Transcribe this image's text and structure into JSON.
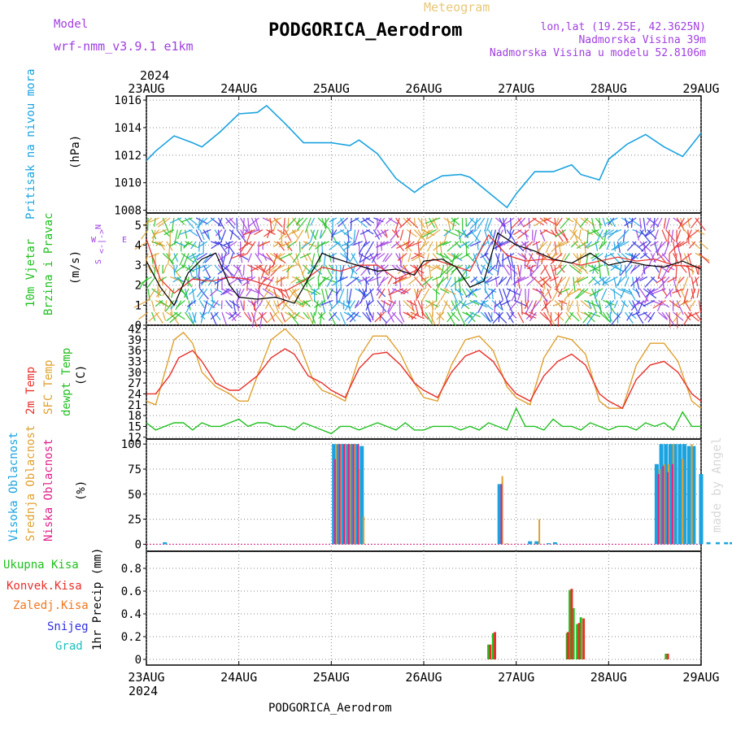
{
  "header": {
    "model_label": "Model",
    "model_name": "wrf-nmm_v3.9.1 e1km",
    "product": "Meteogram",
    "station": "PODGORICA_Aerodrom",
    "lonlat": "lon,lat (19.25E, 42.3625N)",
    "elevation": "Nadmorska Visina 39m",
    "model_elevation": "Nadmorska Visina u modelu 52.8106m",
    "footer_station": "PODGORICA_Aerodrom",
    "credit": "made by Angel",
    "year_top": "2024",
    "year_bottom": "2024"
  },
  "colors": {
    "pressure": "#1ba3e0",
    "wind_speed": "#000000",
    "wind_gust": "#e8302a",
    "t2m": "#e8302a",
    "sfc": "#e0a030",
    "dewpt": "#20c020",
    "cloud_high": "#1ba3e0",
    "cloud_mid": "#e0a030",
    "cloud_low": "#e0208a",
    "precip_total": "#20c020",
    "precip_conv": "#e8302a",
    "precip_frozen": "#f07820",
    "precip_snow": "#3030e0",
    "precip_hail": "#20c0c0",
    "wind_label": "#a040e0"
  },
  "chart_data": [
    {
      "type": "line",
      "panel": "pressure",
      "title": "",
      "ylabel_name": "Pritisak na nivou mora",
      "ylabel_unit": "(hPa)",
      "x_days": [
        "23AUG",
        "24AUG",
        "25AUG",
        "26AUG",
        "27AUG",
        "28AUG",
        "29AUG"
      ],
      "ylim": [
        1007.8,
        1016.3
      ],
      "yticks": [
        1008,
        1010,
        1012,
        1014,
        1016
      ],
      "series": [
        {
          "key": "slp",
          "x": [
            0,
            0.1,
            0.3,
            0.5,
            0.6,
            0.8,
            1.0,
            1.2,
            1.3,
            1.5,
            1.7,
            1.8,
            2.0,
            2.2,
            2.3,
            2.5,
            2.7,
            2.9,
            3.0,
            3.2,
            3.4,
            3.5,
            3.7,
            3.9,
            4.0,
            4.2,
            4.4,
            4.6,
            4.7,
            4.9,
            5.0,
            5.2,
            5.4,
            5.6,
            5.8,
            6.0
          ],
          "values": [
            1011.6,
            1012.3,
            1013.4,
            1012.9,
            1012.6,
            1013.7,
            1015.0,
            1015.1,
            1015.6,
            1014.3,
            1012.9,
            1012.9,
            1012.9,
            1012.7,
            1013.1,
            1012.1,
            1010.3,
            1009.3,
            1009.8,
            1010.5,
            1010.6,
            1010.4,
            1009.3,
            1008.2,
            1009.2,
            1010.8,
            1010.8,
            1011.3,
            1010.6,
            1010.2,
            1011.7,
            1012.8,
            1013.5,
            1012.6,
            1011.9,
            1013.6
          ]
        }
      ]
    },
    {
      "type": "line",
      "panel": "wind",
      "title": "",
      "ylabel_name": "10m Vjetar",
      "ylabel_name2": "Brzina i Pravac",
      "ylabel_unit": "(m/s)",
      "legend_text": [
        "W",
        "<-|->",
        "E",
        "N",
        "S"
      ],
      "ylim": [
        0,
        5.6
      ],
      "yticks": [
        0,
        1,
        2,
        3,
        4,
        5
      ],
      "series": [
        {
          "key": "speed",
          "x": [
            0,
            0.15,
            0.3,
            0.45,
            0.6,
            0.75,
            0.9,
            1.0,
            1.2,
            1.4,
            1.6,
            1.75,
            1.9,
            2.0,
            2.2,
            2.5,
            2.7,
            2.9,
            3.0,
            3.2,
            3.35,
            3.5,
            3.65,
            3.8,
            4.0,
            4.2,
            4.4,
            4.6,
            4.8,
            5.0,
            5.2,
            5.4,
            5.6,
            5.8,
            6.0
          ],
          "values": [
            3.2,
            1.9,
            1.0,
            2.6,
            3.3,
            3.6,
            2.0,
            1.4,
            1.3,
            1.4,
            1.1,
            2.3,
            3.6,
            3.4,
            3.1,
            2.7,
            2.8,
            2.5,
            3.2,
            3.3,
            2.9,
            1.9,
            2.2,
            4.6,
            4.0,
            3.7,
            3.3,
            3.1,
            3.6,
            3.0,
            3.2,
            3.0,
            2.9,
            3.2,
            2.8
          ]
        },
        {
          "key": "gust",
          "x": [
            0,
            0.15,
            0.3,
            0.5,
            0.7,
            0.9,
            1.1,
            1.3,
            1.5,
            1.7,
            1.9,
            2.1,
            2.3,
            2.5,
            2.7,
            2.9,
            3.1,
            3.3,
            3.5,
            3.7,
            3.9,
            4.1,
            4.3,
            4.5,
            4.7,
            4.9,
            5.1,
            5.3,
            5.5,
            5.7,
            6.0
          ],
          "values": [
            4.3,
            2.3,
            1.6,
            2.3,
            2.2,
            2.4,
            2.3,
            2.0,
            1.7,
            2.2,
            2.9,
            2.7,
            3.0,
            3.0,
            2.3,
            2.7,
            3.3,
            3.0,
            2.7,
            4.5,
            3.5,
            3.2,
            3.3,
            3.2,
            3.0,
            3.2,
            3.4,
            3.2,
            3.3,
            3.0,
            2.9
          ]
        }
      ]
    },
    {
      "type": "line",
      "panel": "temperature",
      "title": "",
      "ylabel_names": [
        "2m Temp",
        "SFC Temp",
        "dewpt Temp"
      ],
      "ylabel_unit": "(C)",
      "ylim": [
        11.5,
        43
      ],
      "yticks": [
        12,
        15,
        18,
        21,
        24,
        27,
        30,
        33,
        36,
        39,
        42
      ],
      "series": [
        {
          "key": "t2m",
          "x": [
            0,
            0.1,
            0.25,
            0.35,
            0.5,
            0.6,
            0.75,
            0.9,
            1.0,
            1.2,
            1.35,
            1.5,
            1.6,
            1.75,
            1.9,
            2.0,
            2.15,
            2.3,
            2.45,
            2.6,
            2.75,
            2.9,
            3.0,
            3.15,
            3.3,
            3.45,
            3.6,
            3.75,
            3.9,
            4.0,
            4.15,
            4.3,
            4.45,
            4.6,
            4.75,
            4.9,
            5.0,
            5.15,
            5.3,
            5.45,
            5.6,
            5.75,
            5.9,
            6.0
          ],
          "values": [
            24,
            24,
            29,
            34,
            36,
            33,
            27,
            25,
            25,
            29,
            34,
            36.5,
            35,
            29,
            27,
            25,
            23,
            31,
            35,
            35.5,
            32,
            27,
            25,
            23,
            30,
            34.5,
            36,
            33,
            27,
            24,
            22,
            29,
            33,
            35,
            32,
            24,
            22,
            20,
            28,
            32,
            33,
            30,
            24,
            22
          ]
        },
        {
          "key": "sfc",
          "x": [
            0,
            0.1,
            0.2,
            0.3,
            0.4,
            0.5,
            0.6,
            0.75,
            0.9,
            1.0,
            1.1,
            1.2,
            1.35,
            1.5,
            1.65,
            1.8,
            1.9,
            2.0,
            2.15,
            2.3,
            2.45,
            2.6,
            2.75,
            2.9,
            3.0,
            3.15,
            3.3,
            3.45,
            3.6,
            3.75,
            3.9,
            4.0,
            4.15,
            4.3,
            4.45,
            4.6,
            4.75,
            4.9,
            5.0,
            5.15,
            5.3,
            5.45,
            5.6,
            5.75,
            5.9,
            6.0
          ],
          "values": [
            22,
            21,
            30,
            39,
            41,
            38,
            30,
            26,
            24,
            22,
            22,
            29,
            39,
            42,
            38,
            28,
            25,
            24,
            22,
            34,
            40,
            40,
            35,
            27,
            23,
            22,
            32,
            39,
            40,
            36,
            26,
            23,
            21,
            34,
            40,
            39,
            35,
            22,
            20,
            20,
            32,
            38,
            38,
            33,
            22,
            20
          ]
        },
        {
          "key": "dewpt",
          "x": [
            0,
            0.1,
            0.2,
            0.3,
            0.4,
            0.5,
            0.6,
            0.7,
            0.8,
            0.9,
            1.0,
            1.1,
            1.2,
            1.3,
            1.4,
            1.5,
            1.6,
            1.7,
            1.8,
            1.9,
            2.0,
            2.1,
            2.2,
            2.3,
            2.4,
            2.5,
            2.6,
            2.7,
            2.8,
            2.9,
            3.0,
            3.1,
            3.2,
            3.3,
            3.4,
            3.5,
            3.6,
            3.7,
            3.8,
            3.9,
            4.0,
            4.1,
            4.2,
            4.3,
            4.4,
            4.5,
            4.6,
            4.7,
            4.8,
            4.9,
            5.0,
            5.1,
            5.2,
            5.3,
            5.4,
            5.5,
            5.6,
            5.7,
            5.8,
            5.9,
            6.0
          ],
          "values": [
            16,
            14,
            15,
            16,
            16,
            14,
            16,
            15,
            15,
            16,
            17,
            15,
            16,
            16,
            15,
            15,
            14,
            16,
            15,
            14,
            13,
            15,
            15,
            14,
            15,
            16,
            15,
            14,
            16,
            14,
            14,
            15,
            15,
            15,
            14,
            15,
            14,
            16,
            15,
            14,
            20,
            15,
            15,
            14,
            17,
            15,
            15,
            14,
            16,
            15,
            14,
            15,
            15,
            14,
            16,
            15,
            16,
            14,
            19,
            15,
            15
          ]
        }
      ]
    },
    {
      "type": "bar",
      "panel": "clouds",
      "title": "",
      "ylabel_names": [
        "Visoka Oblacnost",
        "Srednja Oblacnost",
        "Niska Oblacnost"
      ],
      "ylabel_unit": "(%)",
      "ylim": [
        -7,
        105
      ],
      "yticks": [
        0,
        25,
        50,
        75,
        100
      ],
      "series": [
        {
          "key": "high",
          "x": [
            0.2,
            2.03,
            2.08,
            2.13,
            2.18,
            2.23,
            2.28,
            2.33,
            3.82,
            4.15,
            4.22,
            4.35,
            4.42,
            5.52,
            5.57,
            5.62,
            5.67,
            5.72,
            5.77,
            5.82,
            5.87,
            5.92,
            6.0,
            6.08,
            6.18,
            6.27,
            6.33,
            6.39,
            6.45,
            6.52,
            6.58,
            6.64,
            6.72,
            6.8,
            6.88,
            6.95
          ],
          "values": [
            2,
            100,
            100,
            100,
            100,
            100,
            100,
            98,
            60,
            3,
            3,
            1,
            2,
            80,
            100,
            100,
            100,
            100,
            100,
            100,
            98,
            98,
            70,
            2,
            2,
            2,
            2,
            2,
            1,
            2,
            2,
            2,
            28,
            2,
            30,
            100
          ]
        },
        {
          "key": "mid",
          "x": [
            2.05,
            2.1,
            2.15,
            2.2,
            2.25,
            2.3,
            2.35,
            3.85,
            3.9,
            4.25,
            5.55,
            5.6,
            5.65,
            5.7,
            5.8,
            5.9,
            6.62,
            6.72,
            6.9
          ],
          "values": [
            100,
            100,
            100,
            100,
            100,
            75,
            28,
            68,
            1,
            25,
            75,
            80,
            80,
            100,
            85,
            100,
            10,
            10,
            75
          ]
        },
        {
          "key": "low",
          "x": [
            2.04,
            2.09,
            2.14,
            2.19,
            2.24,
            2.29,
            3.84,
            5.54,
            5.59,
            5.64,
            5.69,
            6.6
          ],
          "values": [
            85,
            100,
            100,
            100,
            100,
            100,
            60,
            70,
            78,
            72,
            80,
            2
          ]
        }
      ]
    },
    {
      "type": "bar",
      "panel": "precip",
      "title": "",
      "ylabel_names": [
        "Ukupna Kisa",
        "Konvek.Kisa",
        "Zaledj.Kisa",
        "Snijeg",
        "Grad"
      ],
      "ylabel_unit": "1hr Precip (mm)",
      "ylim": [
        -0.05,
        0.95
      ],
      "yticks": [
        0,
        0.2,
        0.4,
        0.6,
        0.8
      ],
      "series": [
        {
          "key": "total",
          "x": [
            3.7,
            3.75,
            4.55,
            4.58,
            4.62,
            4.66,
            4.7,
            4.75,
            5.62
          ],
          "values": [
            0.13,
            0.23,
            0.23,
            0.61,
            0.45,
            0.31,
            0.37,
            0.0,
            0.05
          ]
        },
        {
          "key": "convective",
          "x": [
            3.72,
            3.77,
            4.56,
            4.6,
            4.68,
            4.73,
            5.64
          ],
          "values": [
            0.13,
            0.24,
            0.24,
            0.62,
            0.32,
            0.36,
            0.05
          ]
        }
      ]
    }
  ]
}
